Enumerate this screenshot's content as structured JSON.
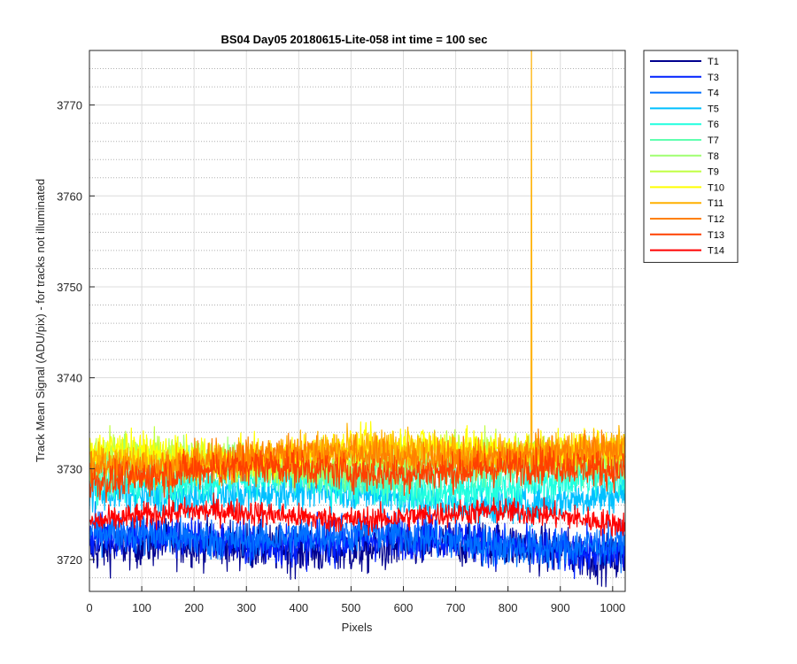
{
  "chart_data": {
    "type": "line",
    "title": "BS04 Day05 20180615-Lite-058 int time = 100 sec",
    "xlabel": "Pixels",
    "ylabel": "Track Mean Signal (ADU/pix) - for tracks not illuminated",
    "xlim": [
      0,
      1024
    ],
    "ylim": [
      3716.5,
      3776
    ],
    "x_ticks": [
      0,
      100,
      200,
      300,
      400,
      500,
      600,
      700,
      800,
      900,
      1000
    ],
    "y_ticks": [
      3720,
      3730,
      3740,
      3750,
      3760,
      3770
    ],
    "grid": "major and minor",
    "legend_position": "outside-top-right",
    "n_points_per_series": 1024,
    "series": [
      {
        "name": "T1",
        "color": "#00008F",
        "baseline": 3721.0,
        "noise": 2.2,
        "spike_min": 3716.5,
        "spike_max": 3726
      },
      {
        "name": "T3",
        "color": "#0020FF",
        "baseline": 3721.8,
        "noise": 2.0,
        "spike_min": 3717.5,
        "spike_max": 3727
      },
      {
        "name": "T4",
        "color": "#0070FF",
        "baseline": 3722.3,
        "noise": 1.9,
        "spike_min": 3718,
        "spike_max": 3727.5
      },
      {
        "name": "T5",
        "color": "#00C0FF",
        "baseline": 3727.0,
        "noise": 1.7,
        "spike_min": 3722,
        "spike_max": 3732
      },
      {
        "name": "T6",
        "color": "#20FFDF",
        "baseline": 3728.5,
        "noise": 1.8,
        "spike_min": 3723.5,
        "spike_max": 3734
      },
      {
        "name": "T7",
        "color": "#60FFB0",
        "baseline": 3730.0,
        "noise": 1.8,
        "spike_min": 3725,
        "spike_max": 3736
      },
      {
        "name": "T8",
        "color": "#A0FF70",
        "baseline": 3731.0,
        "noise": 1.8,
        "spike_min": 3726,
        "spike_max": 3737
      },
      {
        "name": "T9",
        "color": "#C0FF40",
        "baseline": 3731.5,
        "noise": 1.8,
        "spike_min": 3726,
        "spike_max": 3737.5
      },
      {
        "name": "T10",
        "color": "#FFFF00",
        "baseline": 3732.0,
        "noise": 1.8,
        "spike_min": 3727,
        "spike_max": 3738
      },
      {
        "name": "T11",
        "color": "#FFB000",
        "baseline": 3731.5,
        "noise": 1.8,
        "spike_min": 3726,
        "spike_max": 3737.5,
        "spike_at_x": 845,
        "spike_value": 3776
      },
      {
        "name": "T12",
        "color": "#FF8000",
        "baseline": 3731.0,
        "noise": 1.8,
        "spike_min": 3726,
        "spike_max": 3737
      },
      {
        "name": "T13",
        "color": "#FF4000",
        "baseline": 3729.5,
        "noise": 1.7,
        "spike_min": 3725,
        "spike_max": 3735
      },
      {
        "name": "T14",
        "color": "#FF0000",
        "baseline": 3724.5,
        "noise": 1.2,
        "spike_min": 3719.5,
        "spike_max": 3728
      }
    ]
  }
}
